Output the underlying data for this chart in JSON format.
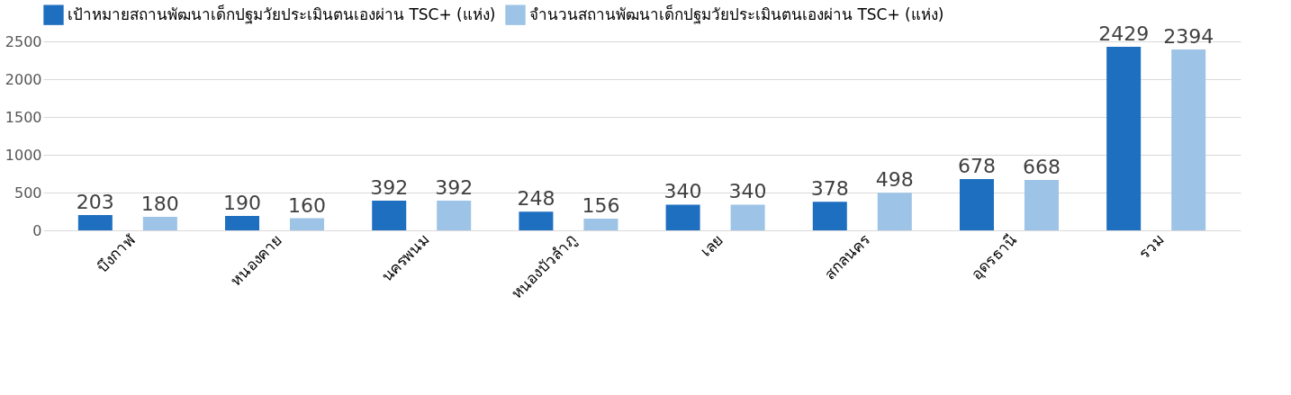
{
  "chart_data": {
    "type": "bar",
    "categories": [
      "บึงกาฬ",
      "หนองคาย",
      "นครพนม",
      "หนองบัวลำภู",
      "เลย",
      "สกลนคร",
      "อุดรธานี",
      "รวม"
    ],
    "series": [
      {
        "name": "เป้าหมายสถานพัฒนาเด็กปฐมวัยประเมินตนเองผ่าน TSC+ (แห่ง)",
        "color": "#1f6fc0",
        "values": [
          203,
          190,
          392,
          248,
          340,
          378,
          678,
          2429
        ]
      },
      {
        "name": "จำนวนสถานพัฒนาเด็กปฐมวัยประเมินตนเองผ่าน TSC+ (แห่ง)",
        "color": "#9dc3e6",
        "values": [
          180,
          160,
          392,
          156,
          340,
          498,
          668,
          2394
        ]
      }
    ],
    "ylim": [
      0,
      2500
    ],
    "yticks": [
      0,
      500,
      1000,
      1500,
      2000,
      2500
    ],
    "grid": "y",
    "legend": "top",
    "data_labels": true
  }
}
